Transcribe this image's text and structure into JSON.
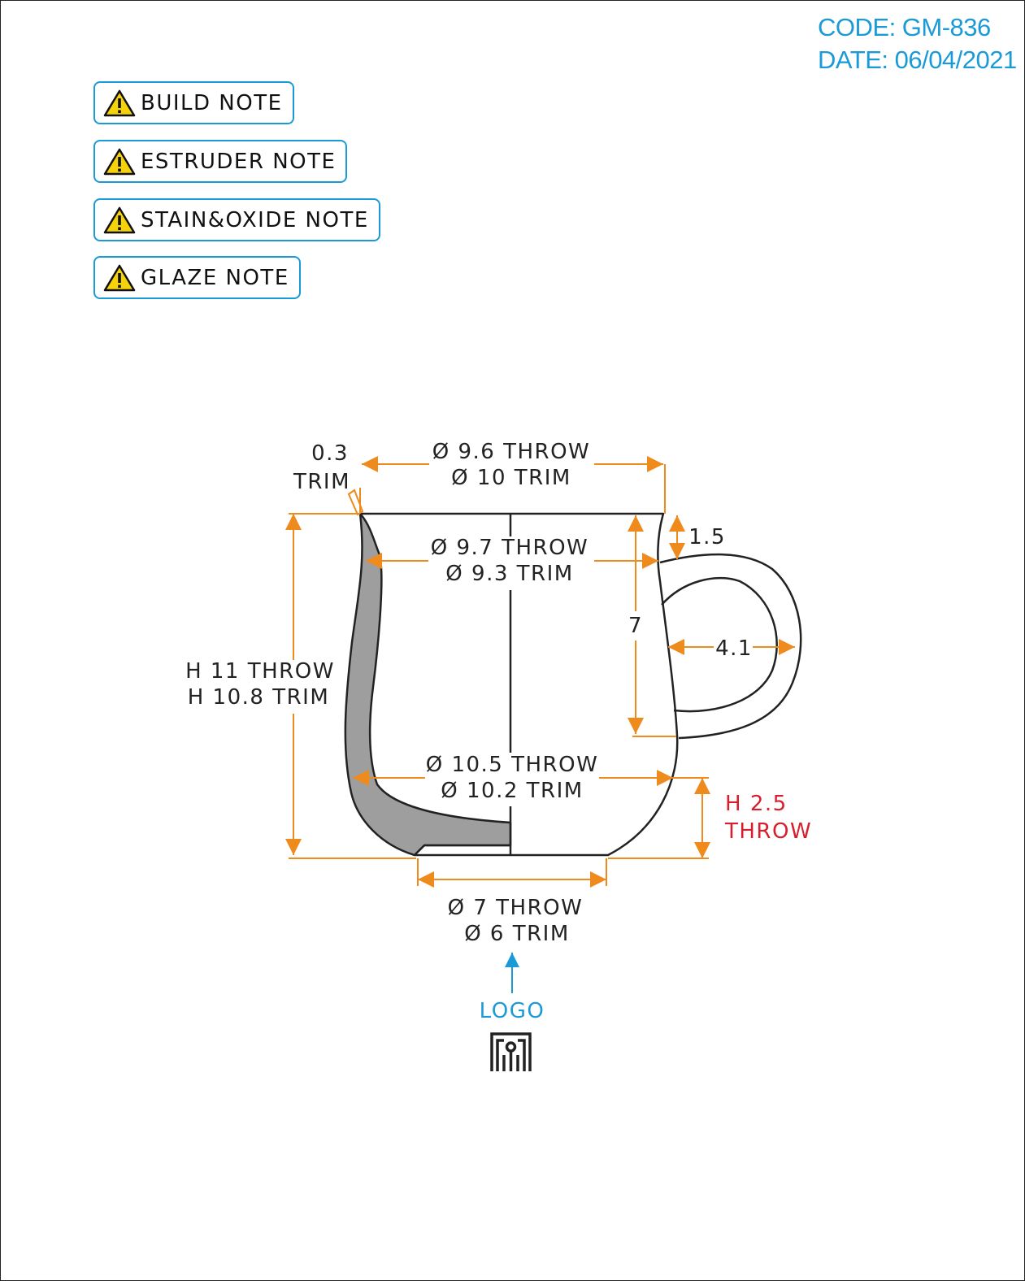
{
  "header": {
    "code": "CODE: GM-836",
    "date": "DATE: 06/04/2021"
  },
  "notes": [
    {
      "label": "BUILD NOTE",
      "icon": "warning-icon"
    },
    {
      "label": "ESTRUDER NOTE",
      "icon": "warning-icon"
    },
    {
      "label": "STAIN&OXIDE NOTE",
      "icon": "warning-icon"
    },
    {
      "label": "GLAZE NOTE",
      "icon": "warning-icon"
    }
  ],
  "dims": {
    "lip_trim_value": "0.3",
    "lip_trim_label": "TRIM",
    "rim_throw": "Ø 9.6 THROW",
    "rim_trim": "Ø 10 TRIM",
    "neck_throw": "Ø 9.7 THROW",
    "neck_trim": "Ø 9.3 TRIM",
    "handle_offset": "1.5",
    "handle_height": "7",
    "handle_width": "4.1",
    "height_throw": "H 11 THROW",
    "height_trim": "H 10.8 TRIM",
    "belly_throw": "Ø 10.5 THROW",
    "belly_trim": "Ø 10.2 TRIM",
    "base_height_value": "H 2.5",
    "base_height_label": "THROW",
    "foot_throw": "Ø 7 THROW",
    "foot_trim": "Ø 6 TRIM"
  },
  "logo": {
    "label": "LOGO",
    "icon": "logo-icon"
  },
  "colors": {
    "dimension": "#ef8a1c",
    "accent": "#1a9ad6",
    "highlight": "#d81e2c",
    "section": "#9e9e9e",
    "outline": "#222222"
  }
}
